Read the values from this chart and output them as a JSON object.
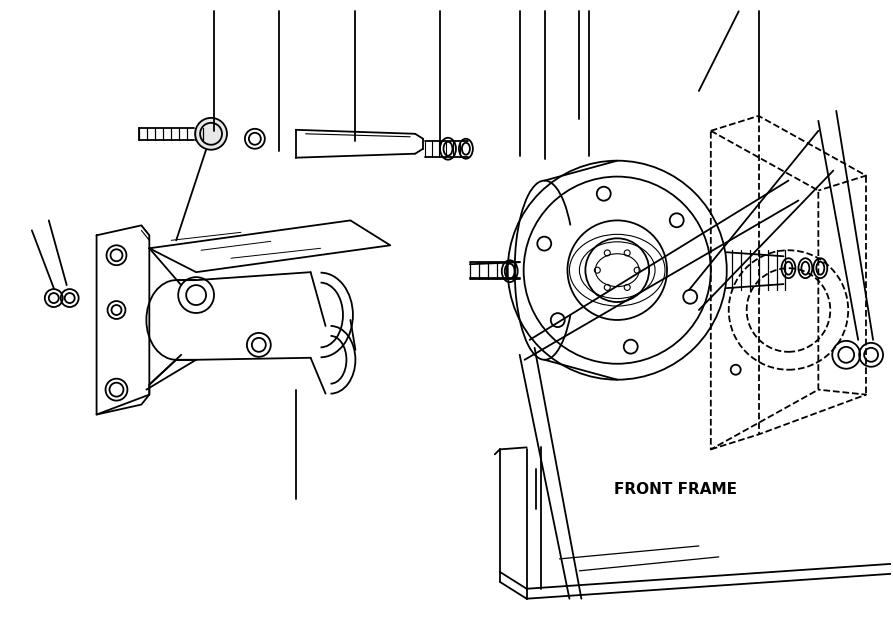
{
  "background_color": "#ffffff",
  "line_color": "#000000",
  "text_color": "#000000",
  "front_frame_label": "FRONT FRAME",
  "figsize": [
    8.93,
    6.22
  ],
  "dpi": 100,
  "lw": 1.3
}
